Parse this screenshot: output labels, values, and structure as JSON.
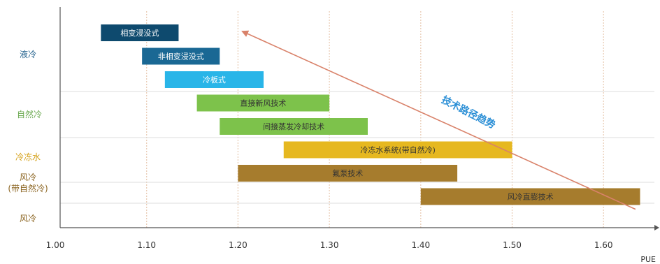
{
  "chart_data": {
    "type": "bar",
    "orientation": "horizontal-range",
    "xlabel": "PUE",
    "xlim": [
      1.0,
      1.65
    ],
    "xticks": [
      "1.00",
      "1.10",
      "1.20",
      "1.30",
      "1.40",
      "1.50",
      "1.60"
    ],
    "xtick_values": [
      1.0,
      1.1,
      1.2,
      1.3,
      1.4,
      1.5,
      1.6
    ],
    "grid": "vertical, dotted",
    "categories": [
      {
        "name": "液冷",
        "color": "#1f5f8b"
      },
      {
        "name": "自然冷",
        "color": "#6aa84f"
      },
      {
        "name": "冷冻水",
        "color": "#d4a017"
      },
      {
        "name": "风冷\n(带自然冷)",
        "color": "#8b6420"
      },
      {
        "name": "风冷",
        "color": "#8b6420"
      }
    ],
    "bars": [
      {
        "label": "相变浸没式",
        "start": 1.05,
        "end": 1.135,
        "category": "液冷",
        "color": "#0e4a6e",
        "text_color": "#ffffff"
      },
      {
        "label": "非相变浸没式",
        "start": 1.095,
        "end": 1.18,
        "category": "液冷",
        "color": "#1a6894",
        "text_color": "#ffffff"
      },
      {
        "label": "冷板式",
        "start": 1.12,
        "end": 1.228,
        "category": "液冷",
        "color": "#29b5e8",
        "text_color": "#ffffff"
      },
      {
        "label": "直接新风技术",
        "start": 1.155,
        "end": 1.3,
        "category": "自然冷",
        "color": "#7dc24b",
        "text_color": "#333333"
      },
      {
        "label": "间接蒸发冷却技术",
        "start": 1.18,
        "end": 1.342,
        "category": "自然冷",
        "color": "#7dc24b",
        "text_color": "#333333"
      },
      {
        "label": "冷冻水系统(带自然冷)",
        "start": 1.25,
        "end": 1.5,
        "category": "冷冻水",
        "color": "#e6b820",
        "text_color": "#333333"
      },
      {
        "label": "氟泵技术",
        "start": 1.2,
        "end": 1.44,
        "category": "风冷\n(带自然冷)",
        "color": "#a67c2d",
        "text_color": "#333333"
      },
      {
        "label": "风冷直膨技术",
        "start": 1.4,
        "end": 1.64,
        "category": "风冷",
        "color": "#a67c2d",
        "text_color": "#333333"
      }
    ],
    "annotations": [
      {
        "text": "技术路径趋势",
        "color": "#2b8fd6",
        "type": "arrow",
        "from": [
          1.635,
          7.9
        ],
        "to": [
          1.205,
          0.3
        ],
        "arrow_color": "#d9826a"
      }
    ]
  }
}
